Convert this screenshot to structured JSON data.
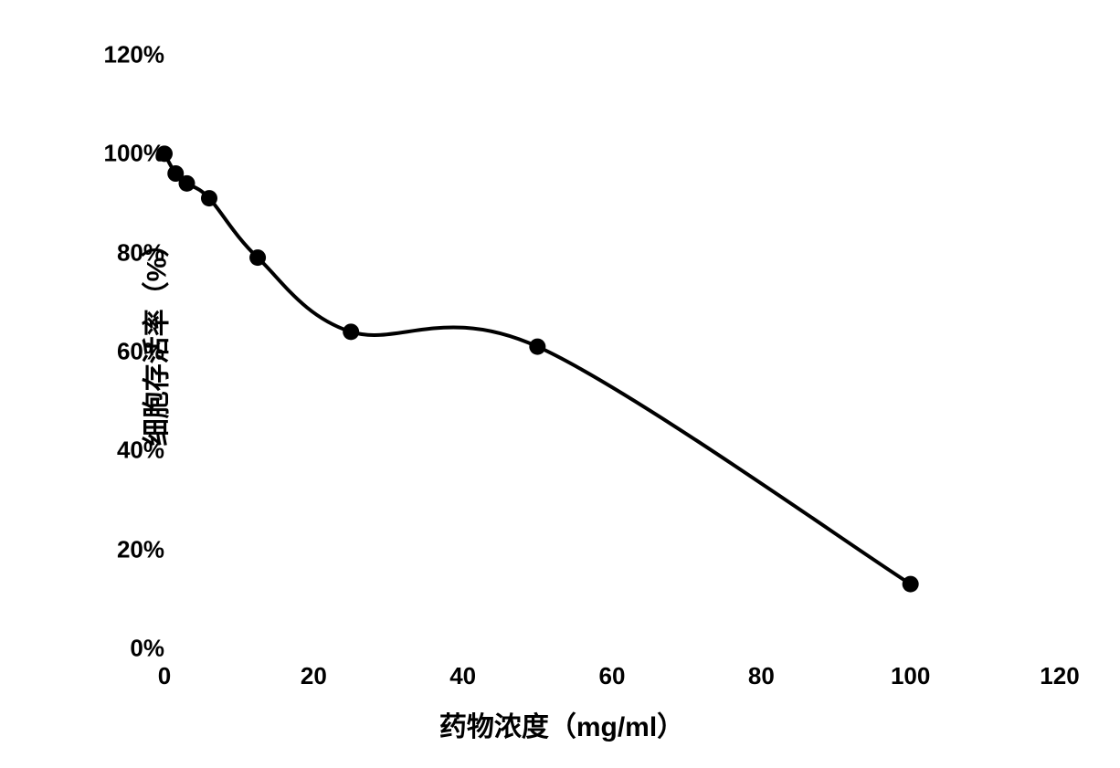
{
  "chart": {
    "type": "line",
    "xlabel": "药物浓度（mg/ml）",
    "ylabel": "细胞存活率（%）",
    "label_fontsize": 30,
    "tick_fontsize": 26,
    "xlim": [
      0,
      120
    ],
    "ylim": [
      0,
      120
    ],
    "xtick_step": 20,
    "ytick_step": 20,
    "xticks": [
      0,
      20,
      40,
      60,
      80,
      100,
      120
    ],
    "yticks": [
      0,
      20,
      40,
      60,
      80,
      100,
      120
    ],
    "xtick_labels": [
      "0",
      "20",
      "40",
      "60",
      "80",
      "100",
      "120"
    ],
    "ytick_labels": [
      "0%",
      "20%",
      "40%",
      "60%",
      "80%",
      "100%",
      "120%"
    ],
    "background_color": "#ffffff",
    "line_color": "#000000",
    "line_width": 4,
    "marker_style": "circle",
    "marker_size": 9,
    "marker_color": "#000000",
    "text_color": "#000000",
    "data": {
      "x": [
        0,
        1.5,
        3,
        6,
        12.5,
        25,
        50,
        100
      ],
      "y": [
        100,
        96,
        94,
        91,
        79,
        64,
        61,
        13
      ]
    },
    "smooth": true,
    "font_weight": "bold",
    "font_family": "Arial"
  }
}
